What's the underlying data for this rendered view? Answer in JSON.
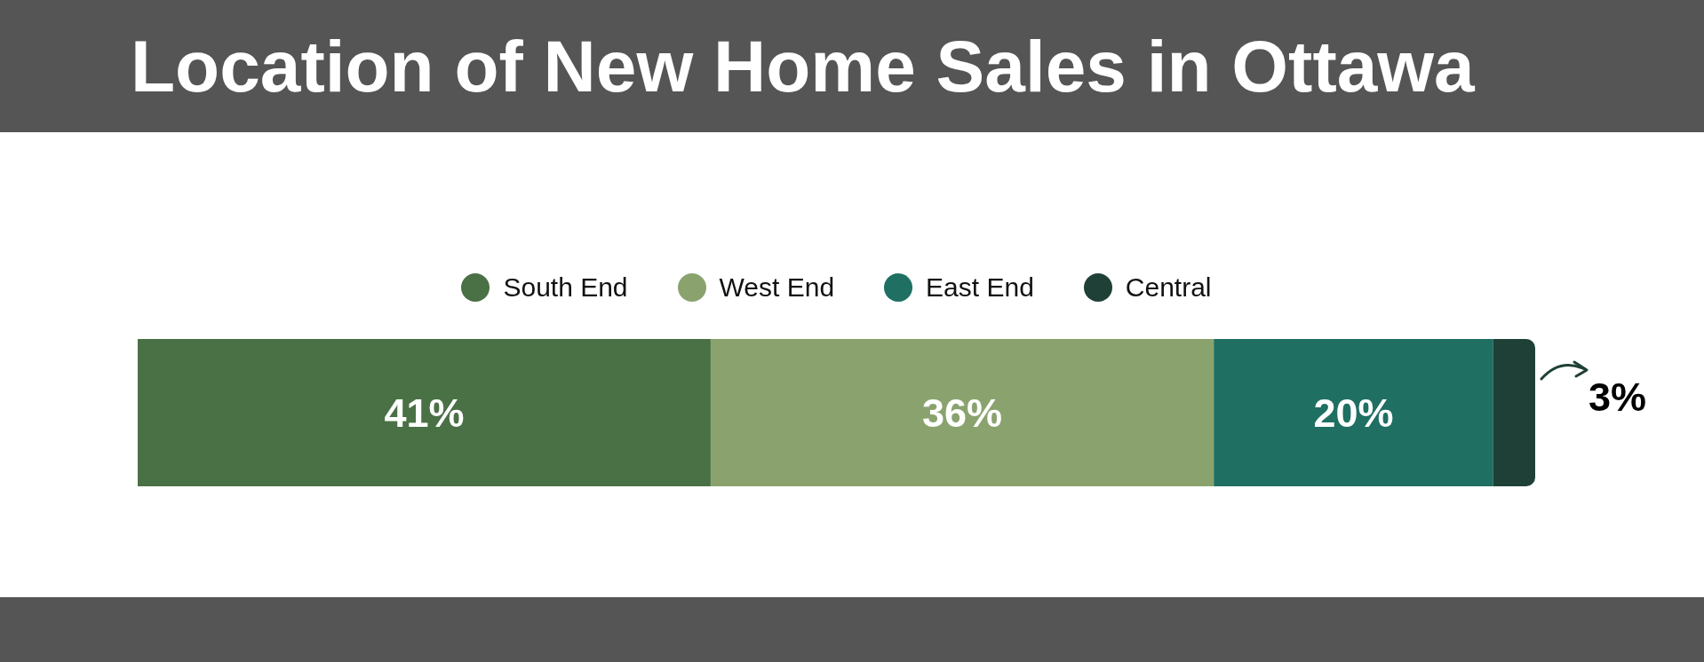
{
  "chart_data": {
    "type": "bar",
    "orientation": "horizontal",
    "stacked": true,
    "title": "Location of New Home Sales in Ottawa",
    "categories": [
      null
    ],
    "series": [
      {
        "name": "South End",
        "color": "#4a7045",
        "values": [
          41
        ],
        "value_labels": [
          "41%"
        ]
      },
      {
        "name": "West End",
        "color": "#8aa36e",
        "values": [
          36
        ],
        "value_labels": [
          "36%"
        ]
      },
      {
        "name": "East End",
        "color": "#1f6f62",
        "values": [
          20
        ],
        "value_labels": [
          "20%"
        ]
      },
      {
        "name": "Central",
        "color": "#1f4037",
        "values": [
          3
        ],
        "value_labels": [
          "3%"
        ]
      }
    ],
    "legend": "top"
  }
}
